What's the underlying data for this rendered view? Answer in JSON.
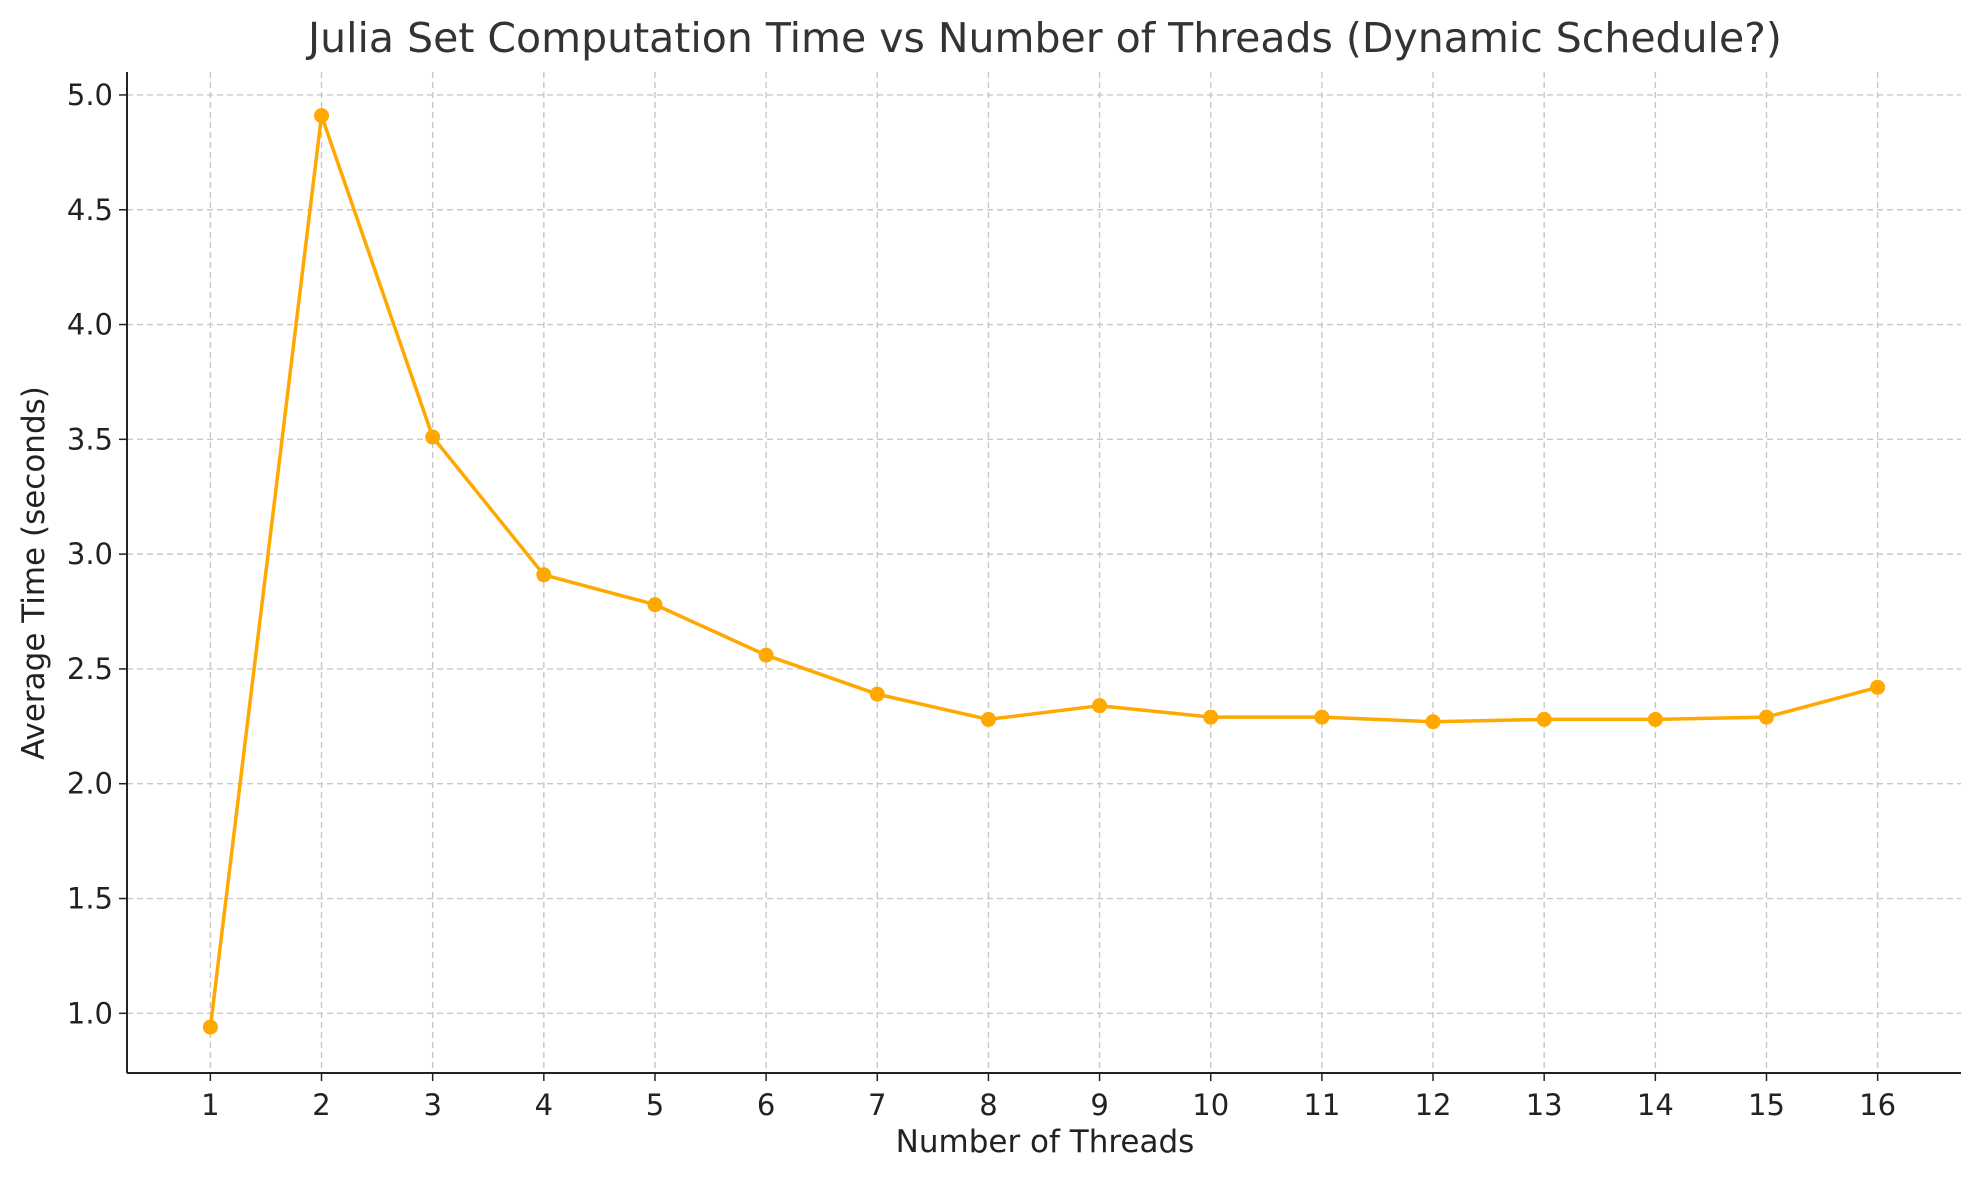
{
  "chart_data": {
    "type": "line",
    "title": "Julia Set Computation Time vs Number of Threads (Dynamic Schedule?)",
    "xlabel": "Number of Threads",
    "ylabel": "Average Time (seconds)",
    "x": [
      1,
      2,
      3,
      4,
      5,
      6,
      7,
      8,
      9,
      10,
      11,
      12,
      13,
      14,
      15,
      16
    ],
    "x_tick_labels": [
      "1",
      "2",
      "3",
      "4",
      "5",
      "6",
      "7",
      "8",
      "9",
      "10",
      "11",
      "12",
      "13",
      "14",
      "15",
      "16"
    ],
    "y_ticks": [
      1.0,
      1.5,
      2.0,
      2.5,
      3.0,
      3.5,
      4.0,
      4.5,
      5.0
    ],
    "y_tick_labels": [
      "1.0",
      "1.5",
      "2.0",
      "2.5",
      "3.0",
      "3.5",
      "4.0",
      "4.5",
      "5.0"
    ],
    "xlim": [
      0.25,
      16.75
    ],
    "ylim": [
      0.74,
      5.1
    ],
    "grid": true,
    "series": [
      {
        "color": "#FFA800",
        "values": [
          0.94,
          4.91,
          3.51,
          2.91,
          2.78,
          2.56,
          2.39,
          2.28,
          2.34,
          2.29,
          2.29,
          2.27,
          2.28,
          2.28,
          2.29,
          2.42
        ]
      }
    ]
  }
}
